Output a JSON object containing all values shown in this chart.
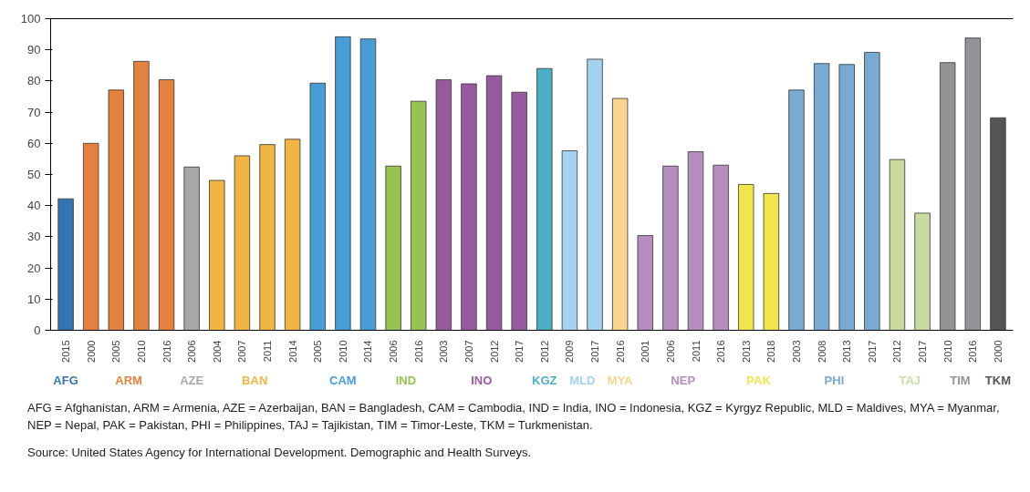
{
  "chart_data": {
    "type": "bar",
    "categories": [
      "2015",
      "2000",
      "2005",
      "2010",
      "2016",
      "2006",
      "2004",
      "2007",
      "2011",
      "2014",
      "2005",
      "2010",
      "2014",
      "2006",
      "2016",
      "2003",
      "2007",
      "2012",
      "2017",
      "2012",
      "2009",
      "2017",
      "2016",
      "2001",
      "2006",
      "2011",
      "2016",
      "2013",
      "2018",
      "2003",
      "2008",
      "2013",
      "2017",
      "2012",
      "2017",
      "2010",
      "2016",
      "2000"
    ],
    "series": [
      {
        "name": "AFG",
        "color": "#3474b0",
        "values": [
          42.2,
          null,
          null,
          null,
          null,
          null,
          null,
          null,
          null,
          null,
          null,
          null,
          null,
          null,
          null,
          null,
          null,
          null,
          null,
          null,
          null,
          null,
          null,
          null,
          null,
          null,
          null,
          null,
          null,
          null,
          null,
          null,
          null,
          null,
          null,
          null,
          null,
          null
        ]
      },
      {
        "name": "ARM",
        "color": "#e3823e",
        "values": [
          null,
          60.0,
          77.1,
          86.3,
          80.4,
          null,
          null,
          null,
          null,
          null,
          null,
          null,
          null,
          null,
          null,
          null,
          null,
          null,
          null,
          null,
          null,
          null,
          null,
          null,
          null,
          null,
          null,
          null,
          null,
          null,
          null,
          null,
          null,
          null,
          null,
          null,
          null,
          null
        ]
      },
      {
        "name": "AZE",
        "color": "#a7a8ab",
        "values": [
          null,
          null,
          null,
          null,
          null,
          52.4,
          null,
          null,
          null,
          null,
          null,
          null,
          null,
          null,
          null,
          null,
          null,
          null,
          null,
          null,
          null,
          null,
          null,
          null,
          null,
          null,
          null,
          null,
          null,
          null,
          null,
          null,
          null,
          null,
          null,
          null,
          null,
          null
        ]
      },
      {
        "name": "BAN",
        "color": "#f0b542",
        "values": [
          null,
          null,
          null,
          null,
          null,
          null,
          48.1,
          56.0,
          59.6,
          61.3,
          null,
          null,
          null,
          null,
          null,
          null,
          null,
          null,
          null,
          null,
          null,
          null,
          null,
          null,
          null,
          null,
          null,
          null,
          null,
          null,
          null,
          null,
          null,
          null,
          null,
          null,
          null,
          null
        ]
      },
      {
        "name": "CAM",
        "color": "#489dd4",
        "values": [
          null,
          null,
          null,
          null,
          null,
          null,
          null,
          null,
          null,
          null,
          79.3,
          94.2,
          93.5,
          null,
          null,
          null,
          null,
          null,
          null,
          null,
          null,
          null,
          null,
          null,
          null,
          null,
          null,
          null,
          null,
          null,
          null,
          null,
          null,
          null,
          null,
          null,
          null,
          null
        ]
      },
      {
        "name": "IND",
        "color": "#98c252",
        "values": [
          null,
          null,
          null,
          null,
          null,
          null,
          null,
          null,
          null,
          null,
          null,
          null,
          null,
          52.7,
          73.5,
          null,
          null,
          null,
          null,
          null,
          null,
          null,
          null,
          null,
          null,
          null,
          null,
          null,
          null,
          null,
          null,
          null,
          null,
          null,
          null,
          null,
          null,
          null
        ]
      },
      {
        "name": "INO",
        "color": "#975a9f",
        "values": [
          null,
          null,
          null,
          null,
          null,
          null,
          null,
          null,
          null,
          null,
          null,
          null,
          null,
          null,
          null,
          80.4,
          79.1,
          81.7,
          76.4,
          null,
          null,
          null,
          null,
          null,
          null,
          null,
          null,
          null,
          null,
          null,
          null,
          null,
          null,
          null,
          null,
          null,
          null,
          null
        ]
      },
      {
        "name": "KGZ",
        "color": "#4bb0c6",
        "values": [
          null,
          null,
          null,
          null,
          null,
          null,
          null,
          null,
          null,
          null,
          null,
          null,
          null,
          null,
          null,
          null,
          null,
          null,
          null,
          84.0,
          null,
          null,
          null,
          null,
          null,
          null,
          null,
          null,
          null,
          null,
          null,
          null,
          null,
          null,
          null,
          null,
          null,
          null
        ]
      },
      {
        "name": "MLD",
        "color": "#a3d3ee",
        "values": [
          null,
          null,
          null,
          null,
          null,
          null,
          null,
          null,
          null,
          null,
          null,
          null,
          null,
          null,
          null,
          null,
          null,
          null,
          null,
          null,
          57.6,
          87.0,
          null,
          null,
          null,
          null,
          null,
          null,
          null,
          null,
          null,
          null,
          null,
          null,
          null,
          null,
          null,
          null
        ]
      },
      {
        "name": "MYA",
        "color": "#f8d48f",
        "values": [
          null,
          null,
          null,
          null,
          null,
          null,
          null,
          null,
          null,
          null,
          null,
          null,
          null,
          null,
          null,
          null,
          null,
          null,
          null,
          null,
          null,
          null,
          74.4,
          null,
          null,
          null,
          null,
          null,
          null,
          null,
          null,
          null,
          null,
          null,
          null,
          null,
          null,
          null
        ]
      },
      {
        "name": "NEP",
        "color": "#b68dbf",
        "values": [
          null,
          null,
          null,
          null,
          null,
          null,
          null,
          null,
          null,
          null,
          null,
          null,
          null,
          null,
          null,
          null,
          null,
          null,
          null,
          null,
          null,
          null,
          null,
          30.4,
          52.7,
          57.3,
          53.0,
          null,
          null,
          null,
          null,
          null,
          null,
          null,
          null,
          null,
          null,
          null
        ]
      },
      {
        "name": "PAK",
        "color": "#f0e54c",
        "values": [
          null,
          null,
          null,
          null,
          null,
          null,
          null,
          null,
          null,
          null,
          null,
          null,
          null,
          null,
          null,
          null,
          null,
          null,
          null,
          null,
          null,
          null,
          null,
          null,
          null,
          null,
          null,
          46.8,
          43.9,
          null,
          null,
          null,
          null,
          null,
          null,
          null,
          null,
          null
        ]
      },
      {
        "name": "PHI",
        "color": "#78aad2",
        "values": [
          null,
          null,
          null,
          null,
          null,
          null,
          null,
          null,
          null,
          null,
          null,
          null,
          null,
          null,
          null,
          null,
          null,
          null,
          null,
          null,
          null,
          null,
          null,
          null,
          null,
          null,
          null,
          null,
          null,
          77.1,
          85.6,
          85.3,
          89.2,
          null,
          null,
          null,
          null,
          null
        ]
      },
      {
        "name": "TAJ",
        "color": "#c9dc9f",
        "values": [
          null,
          null,
          null,
          null,
          null,
          null,
          null,
          null,
          null,
          null,
          null,
          null,
          null,
          null,
          null,
          null,
          null,
          null,
          null,
          null,
          null,
          null,
          null,
          null,
          null,
          null,
          null,
          null,
          null,
          null,
          null,
          null,
          null,
          54.8,
          37.6,
          null,
          null,
          null
        ]
      },
      {
        "name": "TIM",
        "color": "#929497",
        "values": [
          null,
          null,
          null,
          null,
          null,
          null,
          null,
          null,
          null,
          null,
          null,
          null,
          null,
          null,
          null,
          null,
          null,
          null,
          null,
          null,
          null,
          null,
          null,
          null,
          null,
          null,
          null,
          null,
          null,
          null,
          null,
          null,
          null,
          null,
          null,
          85.9,
          93.8,
          null
        ]
      },
      {
        "name": "TKM",
        "color": "#545557",
        "values": [
          null,
          null,
          null,
          null,
          null,
          null,
          null,
          null,
          null,
          null,
          null,
          null,
          null,
          null,
          null,
          null,
          null,
          null,
          null,
          null,
          null,
          null,
          null,
          null,
          null,
          null,
          null,
          null,
          null,
          null,
          null,
          null,
          null,
          null,
          null,
          null,
          null,
          68.2
        ]
      }
    ],
    "ylim": [
      0,
      100
    ],
    "yticks": [
      0,
      10,
      20,
      30,
      40,
      50,
      60,
      70,
      80,
      90,
      100
    ],
    "grid": false,
    "annotations": [
      "AFG = Afghanistan, ARM = Armenia, AZE = Azerbaijan, BAN = Bangladesh, CAM = Cambodia, IND = India, INO = Indonesia, KGZ = Kyrgyz Republic, MLD = Maldives, MYA = Myanmar, NEP = Nepal, PAK = Pakistan, PHI = Philippines, TAJ = Tajikistan, TIM = Timor-Leste, TKM = Turkmenistan.",
      "Source: United States Agency for International Development. Demographic and Health Surveys."
    ]
  }
}
